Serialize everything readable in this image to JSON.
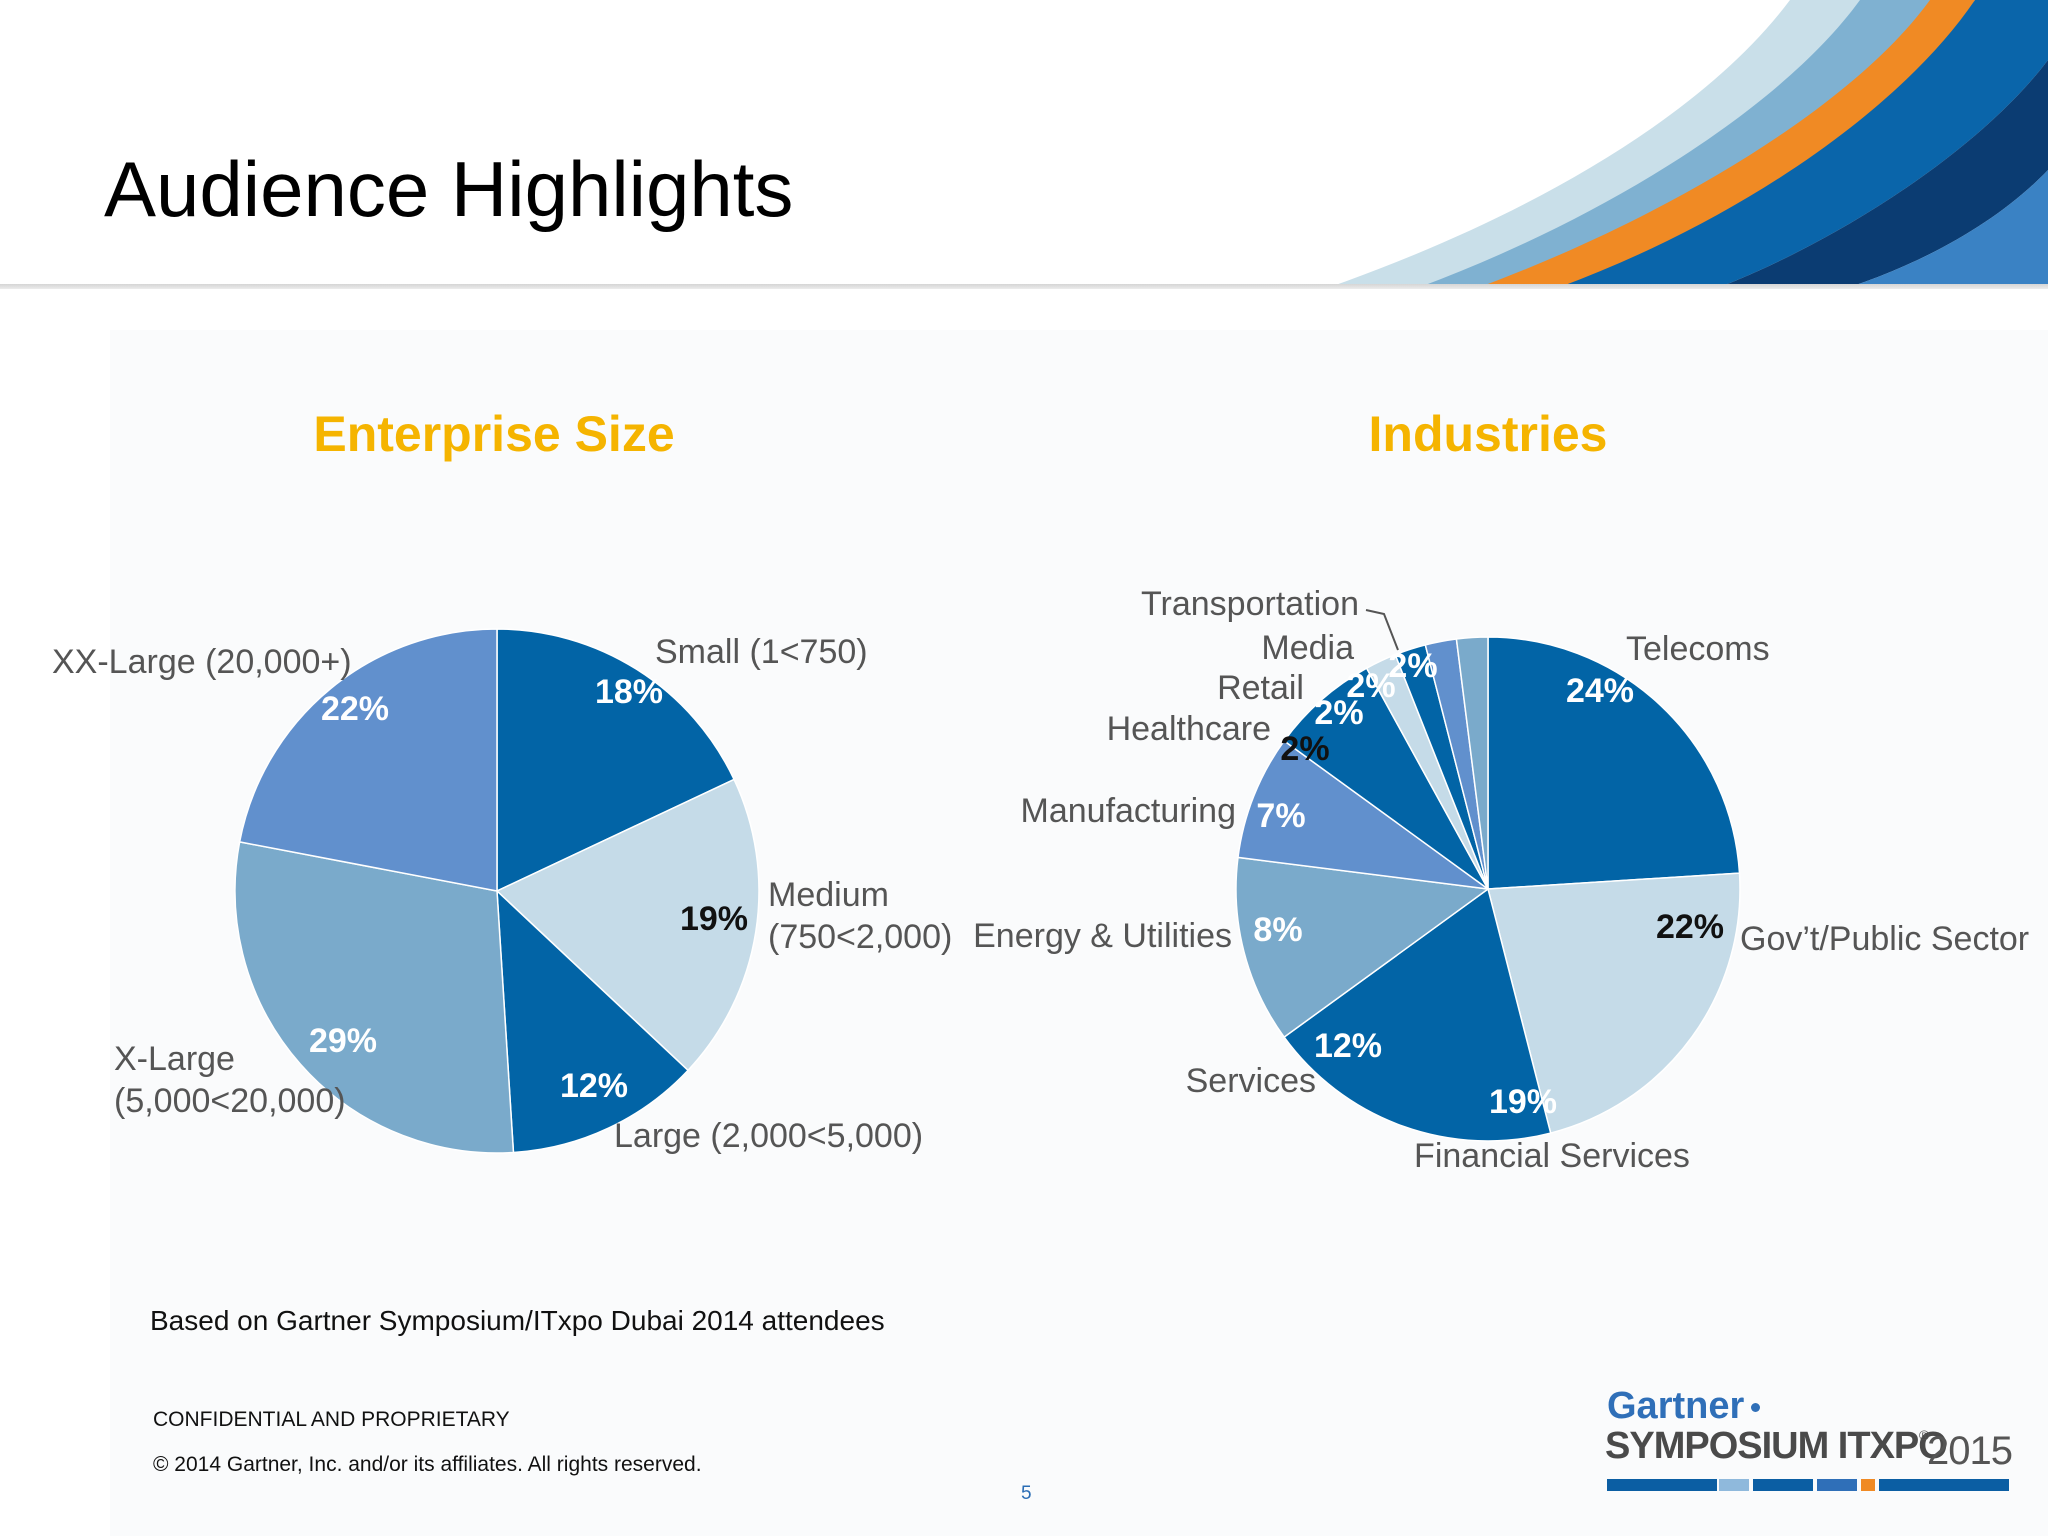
{
  "page": {
    "title": "Audience Highlights",
    "note": "Based on Gartner Symposium/ITxpo Dubai 2014 attendees",
    "confidential": "CONFIDENTIAL AND PROPRIETARY",
    "copyright": "© 2014 Gartner, Inc. and/or its affiliates. All rights reserved.",
    "page_number": "5"
  },
  "logo": {
    "brand": "Gartner",
    "product": "SYMPOSIUM ITXPO",
    "registered": "®",
    "year": "2015"
  },
  "colors": {
    "title_accent": "#f5b400",
    "dark_blue": "#0264a6",
    "medium_blue": "#6190cd",
    "steel_blue": "#7aaacb",
    "light_blue": "#c5dbe8",
    "swoosh_orange": "#f08a24"
  },
  "chart_data": [
    {
      "type": "pie",
      "title": "Enterprise Size",
      "slices": [
        {
          "label": "Small (1<750)",
          "value": 18,
          "value_label": "18%",
          "color": "#0264a6"
        },
        {
          "label": "Medium (750<2,000)",
          "value": 19,
          "value_label": "19%",
          "color": "#c5dbe8"
        },
        {
          "label": "Large (2,000<5,000)",
          "value": 12,
          "value_label": "12%",
          "color": "#0264a6"
        },
        {
          "label": "X-Large (5,000<20,000)",
          "value": 29,
          "value_label": "29%",
          "color": "#7aaacb"
        },
        {
          "label": "XX-Large (20,000+)",
          "value": 22,
          "value_label": "22%",
          "color": "#6190cd"
        }
      ]
    },
    {
      "type": "pie",
      "title": "Industries",
      "slices": [
        {
          "label": "Telecoms",
          "value": 24,
          "value_label": "24%",
          "color": "#0264a6"
        },
        {
          "label": "Gov’t/Public Sector",
          "value": 22,
          "value_label": "22%",
          "color": "#c5dbe8"
        },
        {
          "label": "Financial Services",
          "value": 19,
          "value_label": "19%",
          "color": "#0264a6"
        },
        {
          "label": "Services",
          "value": 12,
          "value_label": "12%",
          "color": "#7aaacb"
        },
        {
          "label": "Energy & Utilities",
          "value": 8,
          "value_label": "8%",
          "color": "#6190cd"
        },
        {
          "label": "Manufacturing",
          "value": 7,
          "value_label": "7%",
          "color": "#0264a6"
        },
        {
          "label": "Healthcare",
          "value": 2,
          "value_label": "2%",
          "color": "#c5dbe8"
        },
        {
          "label": "Retail",
          "value": 2,
          "value_label": "2%",
          "color": "#0264a6"
        },
        {
          "label": "Media",
          "value": 2,
          "value_label": "2%",
          "color": "#6190cd"
        },
        {
          "label": "Transportation",
          "value": 2,
          "value_label": "2%",
          "color": "#7aaacb"
        }
      ]
    }
  ]
}
